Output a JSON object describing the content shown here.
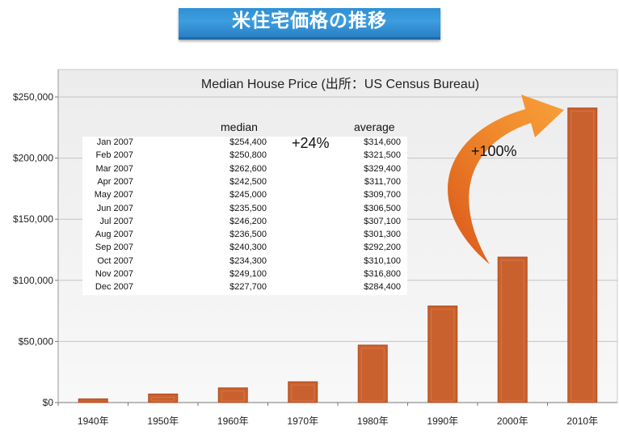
{
  "banner": {
    "title": "米住宅価格の推移"
  },
  "chart_data": {
    "type": "bar",
    "title": "Median House Price (出所：US Census Bureau)",
    "categories": [
      "1940年",
      "1950年",
      "1960年",
      "1970年",
      "1980年",
      "1990年",
      "2000年",
      "2010年"
    ],
    "values": [
      3000,
      7000,
      12000,
      17000,
      47000,
      79000,
      119000,
      241000
    ],
    "ylim": [
      0,
      250000
    ],
    "yticks": [
      0,
      50000,
      100000,
      150000,
      200000,
      250000
    ],
    "ytick_labels": [
      "$0",
      "$50,000",
      "$100,000",
      "$150,000",
      "$200,000",
      "$250,000"
    ],
    "xlabel": "",
    "ylabel": "",
    "bar_color": "#c9612e",
    "grid": true,
    "annotations": {
      "small_increase": "+24%",
      "large_increase": "+100%"
    }
  },
  "inset_table": {
    "median_header": "median",
    "average_header": "average",
    "rows": [
      {
        "month": "Jan 2007",
        "median": "$254,400",
        "average": "$314,600"
      },
      {
        "month": "Feb 2007",
        "median": "$250,800",
        "average": "$321,500"
      },
      {
        "month": "Mar 2007",
        "median": "$262,600",
        "average": "$329,400"
      },
      {
        "month": "Apr 2007",
        "median": "$242,500",
        "average": "$311,700"
      },
      {
        "month": "May 2007",
        "median": "$245,000",
        "average": "$309,700"
      },
      {
        "month": "Jun 2007",
        "median": "$235,500",
        "average": "$306,500"
      },
      {
        "month": "Jul 2007",
        "median": "$246,200",
        "average": "$307,100"
      },
      {
        "month": "Aug 2007",
        "median": "$236,500",
        "average": "$301,300"
      },
      {
        "month": "Sep 2007",
        "median": "$240,300",
        "average": "$292,200"
      },
      {
        "month": "Oct 2007",
        "median": "$234,300",
        "average": "$310,100"
      },
      {
        "month": "Nov 2007",
        "median": "$249,100",
        "average": "$316,800"
      },
      {
        "month": "Dec 2007",
        "median": "$227,700",
        "average": "$284,400"
      }
    ]
  }
}
